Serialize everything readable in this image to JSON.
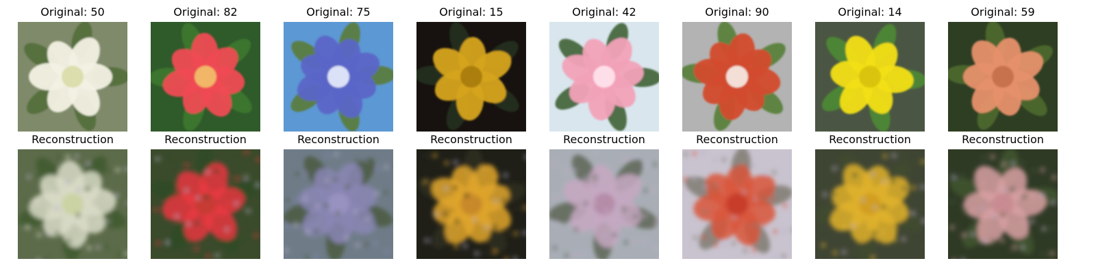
{
  "figure": {
    "originals": [
      {
        "title": "Original: 50",
        "subject": "white petunia flower",
        "bg": "#7f8a6a",
        "petal": "#f3f1e4",
        "center": "#d9dca6",
        "leaf": "#4f6b37"
      },
      {
        "title": "Original: 82",
        "subject": "red hibiscus flower",
        "bg": "#2f5a2a",
        "petal": "#ef4b52",
        "center": "#f2c26a",
        "leaf": "#3c7a2d"
      },
      {
        "title": "Original: 75",
        "subject": "blue morning glory flowers",
        "bg": "#5c98d4",
        "petal": "#5b66c7",
        "center": "#e9eefb",
        "leaf": "#5a7a2d"
      },
      {
        "title": "Original: 15",
        "subject": "yellow rose",
        "bg": "#17120f",
        "petal": "#d6a41f",
        "center": "#a67a10",
        "leaf": "#24311e"
      },
      {
        "title": "Original: 42",
        "subject": "pink gladiolus",
        "bg": "#d9e6ee",
        "petal": "#f2a2b8",
        "center": "#ffe6ee",
        "leaf": "#355b2a"
      },
      {
        "title": "Original: 90",
        "subject": "orange amaryllis",
        "bg": "#b3b3b3",
        "petal": "#d34c2d",
        "center": "#f6efe8",
        "leaf": "#4f7b2e"
      },
      {
        "title": "Original: 14",
        "subject": "yellow iris",
        "bg": "#4a5643",
        "petal": "#f2df14",
        "center": "#d7c10b",
        "leaf": "#4e8d34"
      },
      {
        "title": "Original: 59",
        "subject": "salmon dahlia flowers",
        "bg": "#2e3e22",
        "petal": "#e6906a",
        "center": "#c46e4b",
        "leaf": "#4f6d2f"
      }
    ],
    "reconstructions": [
      {
        "title": "Reconstruction",
        "subject": "blurry white flower reconstruction",
        "bg": "#5c6b4a",
        "petal": "#d9dcc8",
        "center": "#c9d1a0",
        "leaf": "#3f5a2d"
      },
      {
        "title": "Reconstruction",
        "subject": "blurry red flower reconstruction",
        "bg": "#3a4b2b",
        "petal": "#e7373f",
        "center": "#c43b35",
        "leaf": "#2f4a27"
      },
      {
        "title": "Reconstruction",
        "subject": "blurry purple-blue flower reconstruction",
        "bg": "#6f7c88",
        "petal": "#8a86b4",
        "center": "#9a93c2",
        "leaf": "#4a5b3f"
      },
      {
        "title": "Reconstruction",
        "subject": "blurry yellow flower reconstruction",
        "bg": "#1f1f18",
        "petal": "#e0a62c",
        "center": "#c4862a",
        "leaf": "#2d2f22"
      },
      {
        "title": "Reconstruction",
        "subject": "blurry pink flower reconstruction",
        "bg": "#a9aeb6",
        "petal": "#c7a8c2",
        "center": "#b48aa5",
        "leaf": "#5d6656"
      },
      {
        "title": "Reconstruction",
        "subject": "blurry orange-red flower reconstruction",
        "bg": "#c9c3cf",
        "petal": "#d9563b",
        "center": "#c43c2b",
        "leaf": "#7f7b72"
      },
      {
        "title": "Reconstruction",
        "subject": "blurry yellow iris reconstruction",
        "bg": "#3f4533",
        "petal": "#e0b22b",
        "center": "#cf9c22",
        "leaf": "#3e4a2d"
      },
      {
        "title": "Reconstruction",
        "subject": "blurry pink dahlia reconstruction",
        "bg": "#2f3a25",
        "petal": "#d8a0a2",
        "center": "#c88a8f",
        "leaf": "#3f5530"
      }
    ]
  }
}
